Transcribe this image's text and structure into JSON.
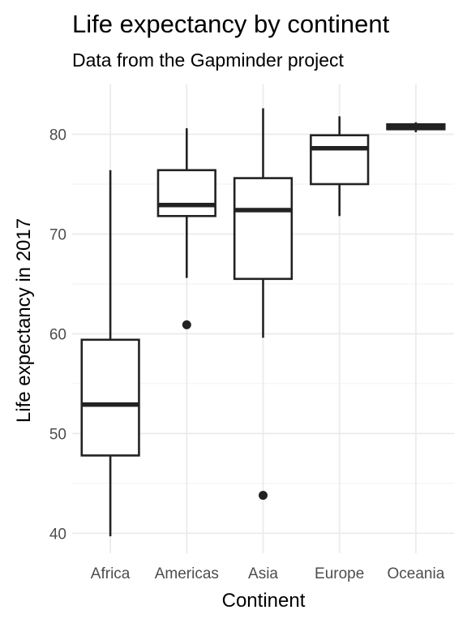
{
  "chart_data": {
    "type": "boxplot",
    "title": "Life expectancy by continent",
    "subtitle": "Data from the Gapminder project",
    "xlabel": "Continent",
    "ylabel": "Life expectancy in 2017",
    "ylim": [
      38,
      85
    ],
    "yticks": [
      40,
      50,
      60,
      70,
      80
    ],
    "grid": true,
    "categories": [
      "Africa",
      "Americas",
      "Asia",
      "Europe",
      "Oceania"
    ],
    "boxes": [
      {
        "category": "Africa",
        "min": 39.7,
        "q1": 47.8,
        "median": 52.9,
        "q3": 59.4,
        "max": 76.4,
        "outliers": []
      },
      {
        "category": "Americas",
        "min": 65.6,
        "q1": 71.8,
        "median": 72.9,
        "q3": 76.4,
        "max": 80.6,
        "outliers": [
          60.9
        ]
      },
      {
        "category": "Asia",
        "min": 59.6,
        "q1": 65.5,
        "median": 72.4,
        "q3": 75.6,
        "max": 82.6,
        "outliers": [
          43.8
        ]
      },
      {
        "category": "Europe",
        "min": 71.8,
        "q1": 75.0,
        "median": 78.6,
        "q3": 79.9,
        "max": 81.8,
        "outliers": []
      },
      {
        "category": "Oceania",
        "min": 80.2,
        "q1": 80.5,
        "median": 80.7,
        "q3": 81.0,
        "max": 81.2,
        "outliers": []
      }
    ]
  }
}
